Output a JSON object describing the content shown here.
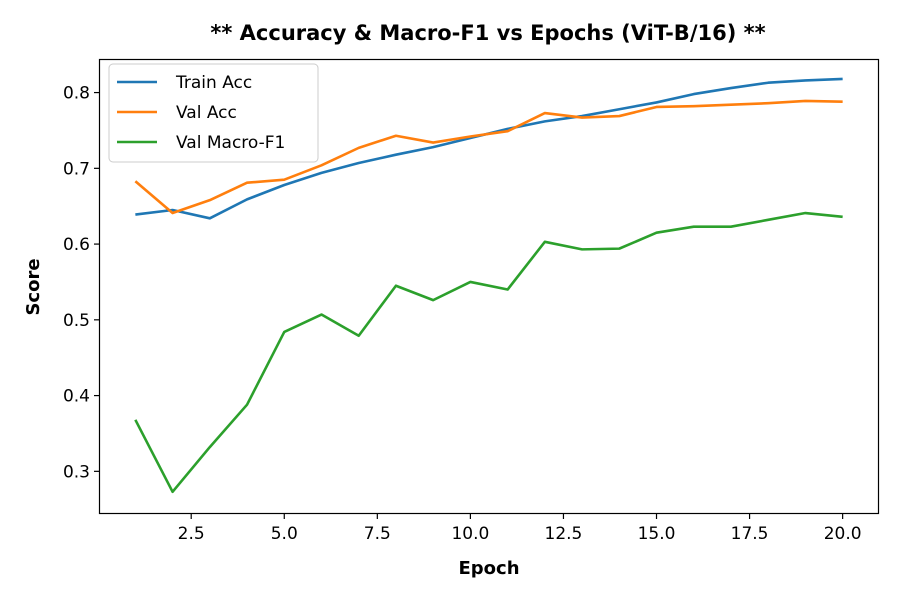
{
  "chart_data": {
    "type": "line",
    "title": "** Accuracy & Macro-F1 vs Epochs (ViT-B/16) **",
    "xlabel": "Epoch",
    "ylabel": "Score",
    "x": [
      1,
      2,
      3,
      4,
      5,
      6,
      7,
      8,
      9,
      10,
      11,
      12,
      13,
      14,
      15,
      16,
      17,
      18,
      19,
      20
    ],
    "xlim": [
      0.05,
      20.95
    ],
    "ylim": [
      0.245,
      0.843
    ],
    "xticks": [
      2.5,
      5.0,
      7.5,
      10.0,
      12.5,
      15.0,
      17.5,
      20.0
    ],
    "xtick_labels": [
      "2.5",
      "5.0",
      "7.5",
      "10.0",
      "12.5",
      "15.0",
      "17.5",
      "20.0"
    ],
    "yticks": [
      0.3,
      0.4,
      0.5,
      0.6,
      0.7,
      0.8
    ],
    "ytick_labels": [
      "0.3",
      "0.4",
      "0.5",
      "0.6",
      "0.7",
      "0.8"
    ],
    "grid": false,
    "legend_position": "upper-left",
    "series": [
      {
        "name": "Train Acc",
        "color": "#1f77b4",
        "values": [
          0.639,
          0.645,
          0.634,
          0.659,
          0.678,
          0.694,
          0.707,
          0.718,
          0.728,
          0.74,
          0.752,
          0.762,
          0.769,
          0.778,
          0.787,
          0.798,
          0.806,
          0.813,
          0.816,
          0.818
        ]
      },
      {
        "name": "Val Acc",
        "color": "#ff7f0e",
        "values": [
          0.683,
          0.641,
          0.658,
          0.681,
          0.685,
          0.704,
          0.727,
          0.743,
          0.734,
          0.742,
          0.749,
          0.773,
          0.767,
          0.769,
          0.781,
          0.782,
          0.784,
          0.786,
          0.789,
          0.788
        ]
      },
      {
        "name": "Val Macro-F1",
        "color": "#2ca02c",
        "values": [
          0.368,
          0.273,
          0.332,
          0.388,
          0.484,
          0.507,
          0.479,
          0.545,
          0.526,
          0.55,
          0.54,
          0.603,
          0.593,
          0.594,
          0.615,
          0.623,
          0.623,
          0.632,
          0.641,
          0.636
        ]
      }
    ]
  }
}
